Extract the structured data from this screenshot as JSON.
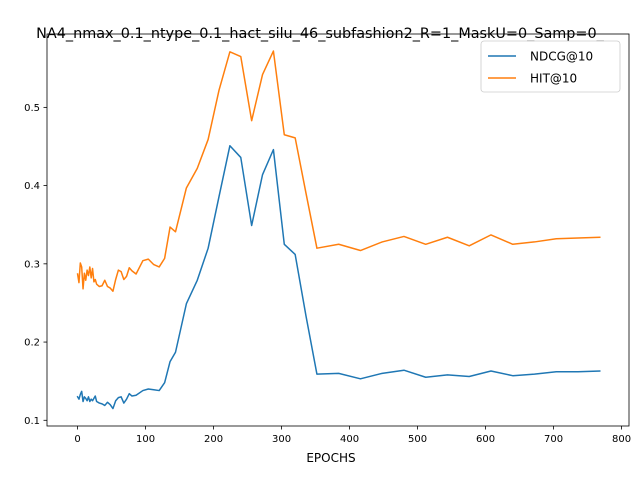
{
  "chart_data": {
    "type": "line",
    "title": "NA4_nmax_0.1_ntype_0.1_hact_silu_46_subfashion2_R=1_MaskU=0_Samp=0_",
    "xlabel": "EPOCHS",
    "ylabel": "",
    "xlim": [
      -45,
      811
    ],
    "ylim": [
      0.0927,
      0.5938
    ],
    "xticks": [
      0,
      100,
      200,
      300,
      400,
      500,
      600,
      700,
      800
    ],
    "yticks": [
      0.1,
      0.2,
      0.3,
      0.4,
      0.5
    ],
    "ytick_labels": [
      "0.1",
      "0.2",
      "0.3",
      "0.4",
      "0.5"
    ],
    "grid": false,
    "legend_position": "upper-right",
    "series": [
      {
        "name": "NDCG@10",
        "color": "#1f77b4",
        "x": [
          0,
          2,
          4,
          6,
          8,
          10,
          12,
          14,
          16,
          18,
          20,
          22,
          24,
          26,
          28,
          32,
          36,
          40,
          44,
          48,
          52,
          56,
          60,
          64,
          68,
          72,
          76,
          80,
          86,
          96,
          104,
          112,
          120,
          128,
          136,
          144,
          160,
          176,
          192,
          208,
          224,
          240,
          256,
          272,
          288,
          304,
          320,
          336,
          352,
          384,
          416,
          448,
          480,
          512,
          544,
          576,
          608,
          640,
          672,
          704,
          736,
          768
        ],
        "y": [
          0.13,
          0.127,
          0.133,
          0.137,
          0.124,
          0.13,
          0.128,
          0.125,
          0.13,
          0.124,
          0.127,
          0.125,
          0.128,
          0.131,
          0.124,
          0.122,
          0.121,
          0.119,
          0.123,
          0.12,
          0.115,
          0.125,
          0.129,
          0.13,
          0.122,
          0.127,
          0.134,
          0.131,
          0.132,
          0.138,
          0.14,
          0.139,
          0.138,
          0.148,
          0.175,
          0.187,
          0.249,
          0.279,
          0.32,
          0.386,
          0.451,
          0.436,
          0.349,
          0.414,
          0.446,
          0.325,
          0.312,
          0.233,
          0.159,
          0.16,
          0.153,
          0.16,
          0.164,
          0.155,
          0.158,
          0.156,
          0.163,
          0.157,
          0.159,
          0.162,
          0.162,
          0.163
        ]
      },
      {
        "name": "HIT@10",
        "color": "#ff7f0e",
        "x": [
          0,
          2,
          4,
          6,
          8,
          10,
          12,
          14,
          16,
          18,
          20,
          22,
          24,
          26,
          28,
          32,
          36,
          40,
          44,
          48,
          52,
          56,
          60,
          64,
          68,
          72,
          76,
          80,
          86,
          96,
          104,
          112,
          120,
          128,
          136,
          144,
          160,
          176,
          192,
          208,
          224,
          240,
          256,
          272,
          288,
          304,
          320,
          336,
          352,
          384,
          416,
          448,
          480,
          512,
          544,
          576,
          608,
          640,
          672,
          704,
          736,
          768
        ],
        "y": [
          0.287,
          0.276,
          0.301,
          0.296,
          0.268,
          0.288,
          0.279,
          0.292,
          0.285,
          0.296,
          0.282,
          0.294,
          0.277,
          0.28,
          0.274,
          0.271,
          0.272,
          0.279,
          0.271,
          0.269,
          0.265,
          0.28,
          0.292,
          0.29,
          0.28,
          0.284,
          0.295,
          0.291,
          0.287,
          0.304,
          0.306,
          0.299,
          0.296,
          0.307,
          0.347,
          0.341,
          0.397,
          0.422,
          0.459,
          0.522,
          0.571,
          0.565,
          0.483,
          0.542,
          0.572,
          0.465,
          0.461,
          0.39,
          0.32,
          0.325,
          0.317,
          0.328,
          0.335,
          0.325,
          0.334,
          0.323,
          0.337,
          0.325,
          0.328,
          0.332,
          0.333,
          0.334
        ]
      }
    ]
  }
}
